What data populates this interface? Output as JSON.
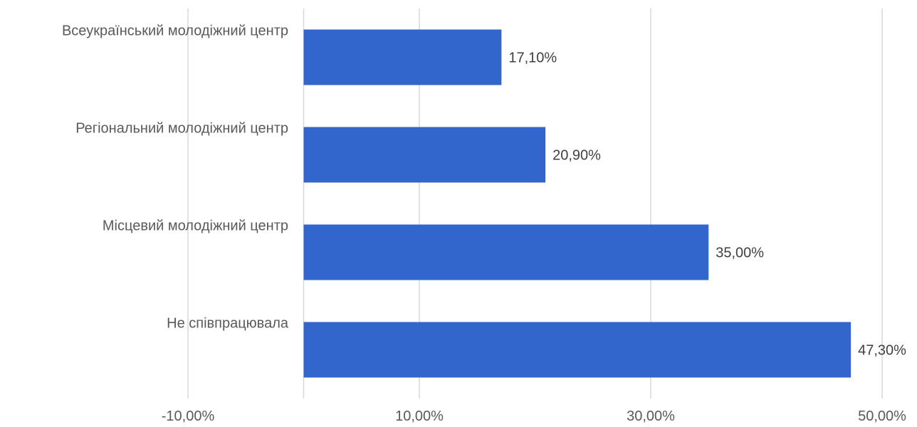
{
  "chart_data": {
    "type": "bar",
    "orientation": "horizontal",
    "categories": [
      "Всеукраїнський молодіжний центр",
      "Регіональний молодіжний центр",
      "Місцевий молодіжний центр",
      "Не співпрацювала"
    ],
    "values": [
      17.1,
      20.9,
      35.0,
      47.3
    ],
    "data_labels": [
      "17,10%",
      "20,90%",
      "35,00%",
      "47,30%"
    ],
    "x_ticks": [
      -10,
      10,
      30,
      50
    ],
    "x_tick_labels": [
      "-10,00%",
      "10,00%",
      "30,00%",
      "50,00%"
    ],
    "xlim": [
      -10,
      50
    ],
    "title": "",
    "xlabel": "",
    "ylabel": "",
    "grid": "vertical",
    "legend": "none",
    "bar_color": "#3366cc"
  }
}
